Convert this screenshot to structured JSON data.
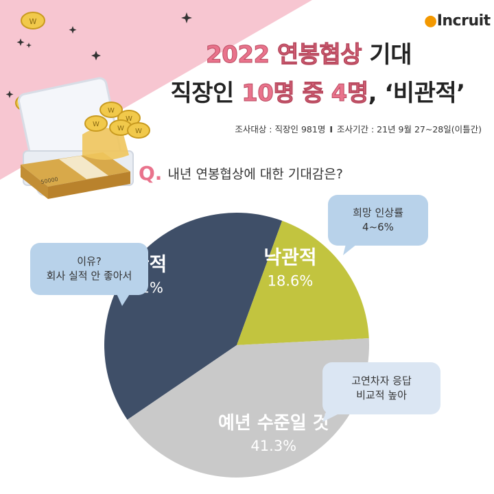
{
  "brand": {
    "logo_text": "Incruit",
    "logo_dot": "●"
  },
  "title": {
    "line1_highlight": "2022 연봉협상",
    "line1_rest": " 기대",
    "line2_lead": "직장인 ",
    "line2_highlight": "10명 중 4명",
    "line2_rest": ", ‘비관적’"
  },
  "survey": {
    "target": "조사대상 : 직장인 981명",
    "separator": "I",
    "period": "조사기간 : 21년 9월 27~28일(이틀간)"
  },
  "question": {
    "mark": "Q.",
    "text": "내년 연봉협상에 대한 기대감은?"
  },
  "chart_data": {
    "type": "pie",
    "title": "",
    "slices": [
      {
        "label": "비관적",
        "value": 40.1,
        "display": "40.1%",
        "color": "#3f4f68",
        "text_color": "#ffffff"
      },
      {
        "label": "낙관적",
        "value": 18.6,
        "display": "18.6%",
        "color": "#c2c43f",
        "text_color": "#ffffff"
      },
      {
        "label": "예년 수준일 것",
        "value": 41.3,
        "display": "41.3%",
        "color": "#c9c9c9",
        "text_color": "#ffffff"
      }
    ]
  },
  "bubbles": {
    "hope": [
      "희망 인상률",
      "4~6%"
    ],
    "reason": [
      "이유?",
      "회사 실적 안 좋아서"
    ],
    "gap": [
      "고연차자 응답",
      "비교적 높아"
    ]
  },
  "decor": {
    "bundle_label": "50000",
    "coin_glyph": "W"
  },
  "colors": {
    "accent_pink": "#e9738c",
    "corner_pink": "#f7c6d1",
    "bubble_blue": "#b8d2ea",
    "bubble_light": "#dbe6f3"
  }
}
